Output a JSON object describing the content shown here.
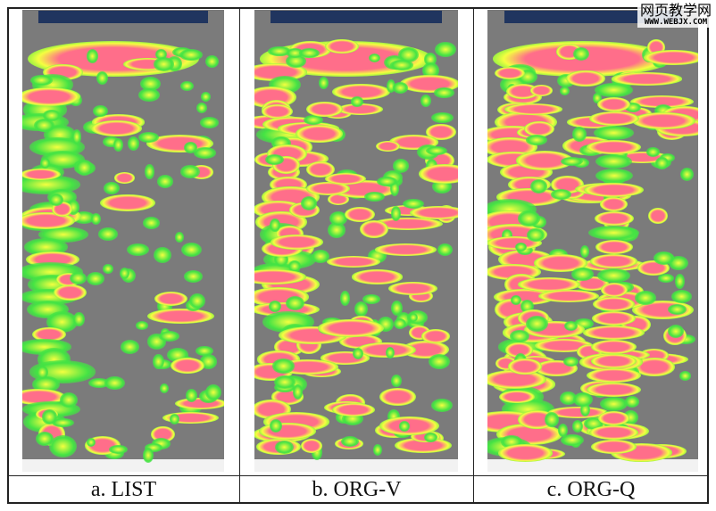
{
  "panels": [
    {
      "id": "list",
      "caption": "a. LIST"
    },
    {
      "id": "org-v",
      "caption": "b. ORG-V"
    },
    {
      "id": "org-q",
      "caption": "c. ORG-Q"
    }
  ],
  "watermark": {
    "chinese": "网页教学网",
    "url": "WWW.WEBJX.COM"
  },
  "colors": {
    "hot": "#ff6e8a",
    "warm": "#f4ff40",
    "cool": "#44e344",
    "background": "#7b7b7b",
    "header": "#20355f"
  }
}
